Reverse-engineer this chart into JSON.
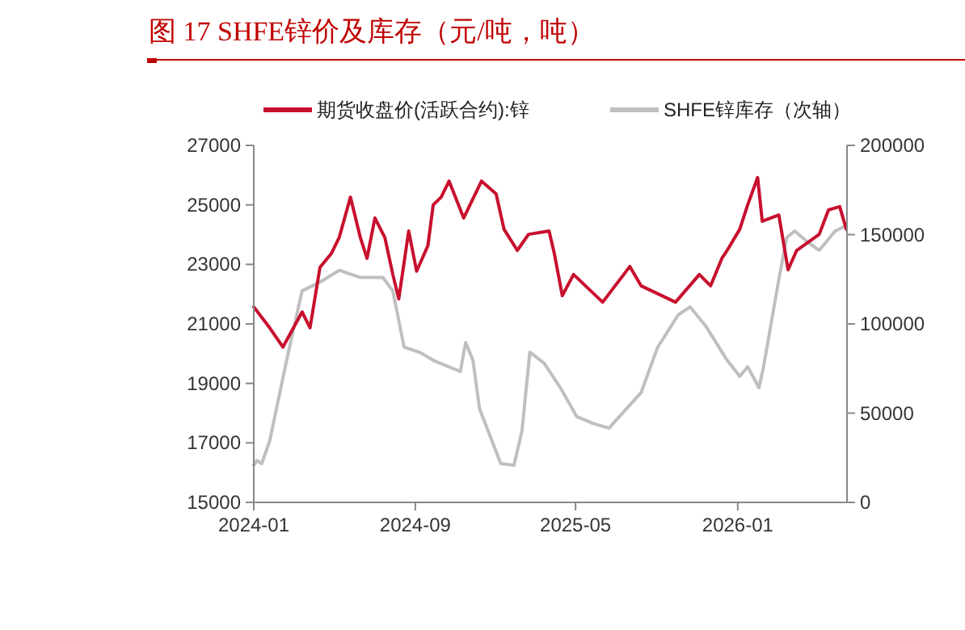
{
  "chart_data": {
    "type": "line",
    "title": "图 17 SHFE锌价及库存（元/吨，吨）",
    "legend": "top",
    "grid": false,
    "marker": "none",
    "line_style": "solid",
    "xlim": [
      "2024-01-01",
      "2026-06-15"
    ],
    "xticks": [
      "2024-01",
      "2024-09",
      "2025-05",
      "2026-01"
    ],
    "ylim": [
      15000,
      27000
    ],
    "yticks": [
      15000,
      17000,
      19000,
      21000,
      23000,
      25000,
      27000
    ],
    "y2lim": [
      0,
      200000
    ],
    "y2ticks": [
      0,
      50000,
      100000,
      150000,
      200000
    ],
    "series": [
      {
        "name": "期货收盘价(活跃合约):锌",
        "color": "#c8102e",
        "x": [
          "2024-01-01",
          "2024-01-25",
          "2024-02-14",
          "2024-03-14",
          "2024-03-26",
          "2024-04-10",
          "2024-04-27",
          "2024-05-09",
          "2024-05-26",
          "2024-06-10",
          "2024-06-20",
          "2024-07-02",
          "2024-07-17",
          "2024-07-29",
          "2024-08-07",
          "2024-08-22",
          "2024-09-03",
          "2024-09-20",
          "2024-09-28",
          "2024-10-10",
          "2024-10-22",
          "2024-11-13",
          "2024-12-10",
          "2025-01-01",
          "2025-01-13",
          "2025-02-02",
          "2025-02-19",
          "2025-03-22",
          "2025-03-30",
          "2025-04-11",
          "2025-04-28",
          "2025-06-11",
          "2025-07-22",
          "2025-08-08",
          "2025-09-29",
          "2025-11-04",
          "2025-11-21",
          "2025-12-08",
          "2025-12-16",
          "2026-01-04",
          "2026-01-16",
          "2026-01-31",
          "2026-02-07",
          "2026-03-04",
          "2026-03-18",
          "2026-03-31",
          "2026-04-17",
          "2026-05-04",
          "2026-05-18",
          "2026-06-04",
          "2026-06-14"
        ],
        "values": [
          21570,
          20870,
          20220,
          21400,
          20870,
          22900,
          23360,
          23900,
          25260,
          23900,
          23200,
          24560,
          23900,
          22660,
          21840,
          24120,
          22770,
          23630,
          25000,
          25260,
          25800,
          24560,
          25800,
          25370,
          24180,
          23470,
          24010,
          24120,
          23360,
          21950,
          22660,
          21730,
          22930,
          22280,
          21730,
          22660,
          22280,
          23200,
          23470,
          24180,
          25000,
          25920,
          24450,
          24660,
          22820,
          23470,
          23740,
          24010,
          24830,
          24940,
          24180
        ]
      },
      {
        "name": "SHFE锌库存（次轴）",
        "color": "#bfbfbf",
        "axis": "y2",
        "x": [
          "2024-01-01",
          "2024-01-06",
          "2024-01-13",
          "2024-01-25",
          "2024-02-21",
          "2024-03-14",
          "2024-04-08",
          "2024-05-09",
          "2024-06-10",
          "2024-07-14",
          "2024-07-29",
          "2024-08-15",
          "2024-09-08",
          "2024-09-28",
          "2024-11-08",
          "2024-11-16",
          "2024-11-27",
          "2024-12-07",
          "2025-01-08",
          "2025-01-28",
          "2025-02-09",
          "2025-02-21",
          "2025-03-15",
          "2025-04-08",
          "2025-05-03",
          "2025-05-27",
          "2025-06-21",
          "2025-06-27",
          "2025-08-08",
          "2025-09-02",
          "2025-10-03",
          "2025-10-21",
          "2025-11-14",
          "2025-12-16",
          "2026-01-04",
          "2026-01-16",
          "2026-02-02",
          "2026-02-09",
          "2026-03-04",
          "2026-03-16",
          "2026-03-28",
          "2026-04-17",
          "2026-05-04",
          "2026-05-28",
          "2026-06-12"
        ],
        "values": [
          20800,
          23500,
          21700,
          34400,
          82000,
          118500,
          123000,
          130000,
          126000,
          126000,
          118500,
          87000,
          84000,
          79600,
          73300,
          89600,
          79600,
          52500,
          21700,
          20800,
          39800,
          84200,
          77800,
          64250,
          48000,
          44300,
          41600,
          44300,
          61500,
          86900,
          105000,
          109500,
          98600,
          79600,
          70600,
          76000,
          64250,
          76000,
          124900,
          148400,
          152000,
          145700,
          141200,
          152000,
          154700
        ]
      }
    ]
  }
}
